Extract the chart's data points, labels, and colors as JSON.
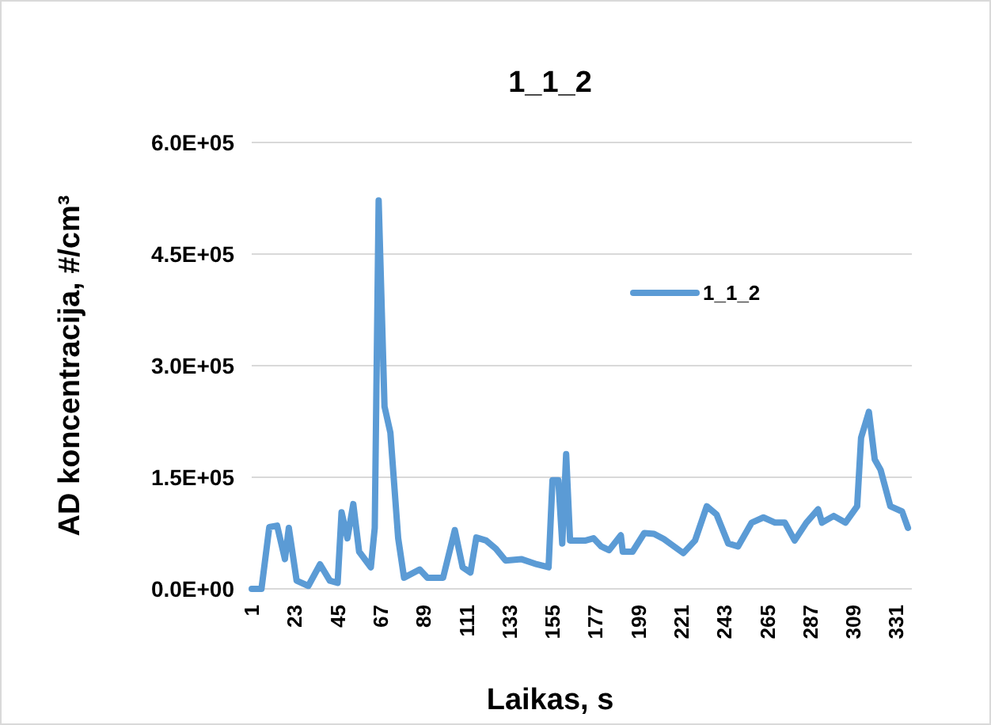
{
  "chart_data": {
    "type": "line",
    "title": "1_1_2",
    "xlabel": "Laikas, s",
    "ylabel": "AD koncentracija, #/cm³",
    "xlim": [
      1,
      339
    ],
    "xticks": [
      1,
      23,
      45,
      67,
      89,
      111,
      133,
      155,
      177,
      199,
      221,
      243,
      265,
      287,
      309,
      331
    ],
    "ylim": [
      0,
      600000
    ],
    "yticks": [
      {
        "value": 0,
        "label": "0.0E+00"
      },
      {
        "value": 150000,
        "label": "1.5E+05"
      },
      {
        "value": 300000,
        "label": "3.0E+05"
      },
      {
        "value": 450000,
        "label": "4.5E+05"
      },
      {
        "value": 600000,
        "label": "6.0E+05"
      }
    ],
    "grid": "y",
    "legend": "top right",
    "marker": "none",
    "line_style": "solid",
    "series": [
      {
        "name": "1_1_2",
        "color": "#5b9bd5",
        "x": [
          1,
          2,
          6,
          10,
          14,
          18,
          20,
          24,
          30,
          36,
          41,
          45,
          47,
          50,
          53,
          56,
          62,
          64,
          66,
          69,
          72,
          76,
          79,
          87,
          91,
          99,
          105,
          109,
          113,
          116,
          121,
          126,
          131,
          139,
          147,
          153,
          155,
          158,
          160,
          162,
          164,
          172,
          176,
          180,
          184,
          190,
          191,
          196,
          202,
          207,
          212,
          222,
          228,
          234,
          239,
          245,
          250,
          257,
          263,
          269,
          274,
          279,
          285,
          291,
          293,
          299,
          305,
          311,
          313,
          317,
          320,
          323,
          328,
          334,
          337
        ],
        "values": [
          0,
          0,
          0,
          83000,
          85000,
          40000,
          82000,
          11000,
          4000,
          33000,
          11000,
          8000,
          103000,
          68000,
          114000,
          50000,
          29000,
          82000,
          522000,
          245000,
          210000,
          68000,
          15000,
          26000,
          15000,
          15000,
          79000,
          29000,
          22000,
          69000,
          65000,
          54000,
          38000,
          40000,
          33000,
          29000,
          146000,
          146000,
          61000,
          181000,
          65000,
          65000,
          68000,
          57000,
          52000,
          72000,
          50000,
          50000,
          75000,
          74000,
          67000,
          48000,
          65000,
          111000,
          100000,
          61000,
          57000,
          89000,
          96000,
          89000,
          89000,
          65000,
          89000,
          107000,
          89000,
          98000,
          89000,
          111000,
          203000,
          238000,
          174000,
          160000,
          111000,
          104000,
          82000
        ]
      }
    ]
  }
}
